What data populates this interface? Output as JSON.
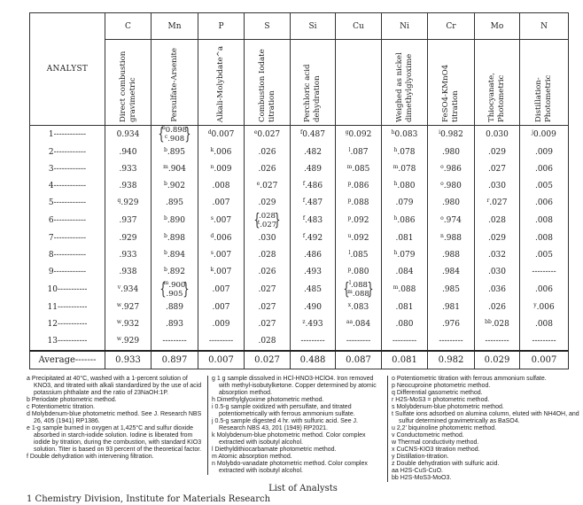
{
  "header": {
    "analyst_label": "ANALYST",
    "columns": [
      {
        "element": "C",
        "method": "Direct combustion gravimetric"
      },
      {
        "element": "Mn",
        "method": "Persulfate-Arsenite"
      },
      {
        "element": "P",
        "method": "Alkali-Molybdate^a"
      },
      {
        "element": "S",
        "method": "Combustion Iodate titration"
      },
      {
        "element": "Si",
        "method": "Perchloric acid dehydration"
      },
      {
        "element": "Cu",
        "method": ""
      },
      {
        "element": "Ni",
        "method": "Weighed as nickel dimethylglyoxime"
      },
      {
        "element": "Cr",
        "method": "FeSO4-KMnO4 titration"
      },
      {
        "element": "Mo",
        "method": "Thiocyanate, Photometric"
      },
      {
        "element": "N",
        "method": "Distillation-Photometric"
      }
    ]
  },
  "rows": [
    {
      "analyst": "1",
      "cells": [
        [
          [
            "",
            "0.934"
          ]
        ],
        [
          [
            "b",
            "0.898"
          ],
          [
            "c",
            ".908"
          ]
        ],
        [
          [
            "d",
            "0.007"
          ]
        ],
        [
          [
            "e",
            "0.027"
          ]
        ],
        [
          [
            "f",
            "0.487"
          ]
        ],
        [
          [
            "g",
            "0.092"
          ]
        ],
        [
          [
            "h",
            "0.083"
          ]
        ],
        [
          [
            "i",
            "0.982"
          ]
        ],
        [
          [
            "",
            "0.030"
          ]
        ],
        [
          [
            "j",
            "0.009"
          ]
        ]
      ]
    },
    {
      "analyst": "2",
      "cells": [
        [
          [
            "",
            ".940"
          ]
        ],
        [
          [
            "b",
            ".895"
          ]
        ],
        [
          [
            "k",
            ".006"
          ]
        ],
        [
          [
            "",
            ".026"
          ]
        ],
        [
          [
            "",
            ".482"
          ]
        ],
        [
          [
            "l",
            ".087"
          ]
        ],
        [
          [
            "h",
            ".078"
          ]
        ],
        [
          [
            "",
            ".980"
          ]
        ],
        [
          [
            "",
            ".029"
          ]
        ],
        [
          [
            "",
            ".009"
          ]
        ]
      ]
    },
    {
      "analyst": "3",
      "cells": [
        [
          [
            "",
            ".933"
          ]
        ],
        [
          [
            "m",
            ".904"
          ]
        ],
        [
          [
            "n",
            ".009"
          ]
        ],
        [
          [
            "",
            ".026"
          ]
        ],
        [
          [
            "",
            ".489"
          ]
        ],
        [
          [
            "m",
            ".085"
          ]
        ],
        [
          [
            "m",
            ".078"
          ]
        ],
        [
          [
            "o",
            ".986"
          ]
        ],
        [
          [
            "",
            ".027"
          ]
        ],
        [
          [
            "",
            ".006"
          ]
        ]
      ]
    },
    {
      "analyst": "4",
      "cells": [
        [
          [
            "",
            ".938"
          ]
        ],
        [
          [
            "b",
            ".902"
          ]
        ],
        [
          [
            "",
            ".008"
          ]
        ],
        [
          [
            "e",
            ".027"
          ]
        ],
        [
          [
            "f",
            ".486"
          ]
        ],
        [
          [
            "p",
            ".086"
          ]
        ],
        [
          [
            "h",
            ".080"
          ]
        ],
        [
          [
            "o",
            ".980"
          ]
        ],
        [
          [
            "",
            ".030"
          ]
        ],
        [
          [
            "",
            ".005"
          ]
        ]
      ]
    },
    {
      "analyst": "5",
      "cells": [
        [
          [
            "q",
            ".929"
          ]
        ],
        [
          [
            "",
            ".895"
          ]
        ],
        [
          [
            "",
            ".007"
          ]
        ],
        [
          [
            "",
            ".029"
          ]
        ],
        [
          [
            "f",
            ".487"
          ]
        ],
        [
          [
            "p",
            ".088"
          ]
        ],
        [
          [
            "",
            ".079"
          ]
        ],
        [
          [
            "",
            ".980"
          ]
        ],
        [
          [
            "r",
            ".027"
          ]
        ],
        [
          [
            "",
            ".006"
          ]
        ]
      ]
    },
    {
      "analyst": "6",
      "cells": [
        [
          [
            "",
            ".937"
          ]
        ],
        [
          [
            "b",
            ".890"
          ]
        ],
        [
          [
            "s",
            ".007"
          ]
        ],
        [
          [
            "",
            ".028"
          ],
          [
            "t",
            ".027"
          ]
        ],
        [
          [
            "f",
            ".483"
          ]
        ],
        [
          [
            "p",
            ".092"
          ]
        ],
        [
          [
            "h",
            ".086"
          ]
        ],
        [
          [
            "o",
            ".974"
          ]
        ],
        [
          [
            "",
            ".028"
          ]
        ],
        [
          [
            "",
            ".008"
          ]
        ]
      ]
    },
    {
      "analyst": "7",
      "cells": [
        [
          [
            "",
            ".929"
          ]
        ],
        [
          [
            "b",
            ".898"
          ]
        ],
        [
          [
            "d",
            ".006"
          ]
        ],
        [
          [
            "",
            ".030"
          ]
        ],
        [
          [
            "f",
            ".492"
          ]
        ],
        [
          [
            "u",
            ".092"
          ]
        ],
        [
          [
            "",
            ".081"
          ]
        ],
        [
          [
            "n",
            ".988"
          ]
        ],
        [
          [
            "",
            ".029"
          ]
        ],
        [
          [
            "",
            ".008"
          ]
        ]
      ]
    },
    {
      "analyst": "8",
      "cells": [
        [
          [
            "",
            ".933"
          ]
        ],
        [
          [
            "b",
            ".894"
          ]
        ],
        [
          [
            "s",
            ".007"
          ]
        ],
        [
          [
            "",
            ".028"
          ]
        ],
        [
          [
            "",
            ".486"
          ]
        ],
        [
          [
            "l",
            ".085"
          ]
        ],
        [
          [
            "h",
            ".079"
          ]
        ],
        [
          [
            "",
            ".988"
          ]
        ],
        [
          [
            "",
            ".032"
          ]
        ],
        [
          [
            "",
            ".005"
          ]
        ]
      ]
    },
    {
      "analyst": "9",
      "cells": [
        [
          [
            "",
            ".938"
          ]
        ],
        [
          [
            "b",
            ".892"
          ]
        ],
        [
          [
            "k",
            ".007"
          ]
        ],
        [
          [
            "",
            ".026"
          ]
        ],
        [
          [
            "",
            ".493"
          ]
        ],
        [
          [
            "p",
            ".080"
          ]
        ],
        [
          [
            "",
            ".084"
          ]
        ],
        [
          [
            "",
            ".984"
          ]
        ],
        [
          [
            "",
            ".030"
          ]
        ],
        [
          [
            "",
            "---------"
          ]
        ]
      ]
    },
    {
      "analyst": "10",
      "cells": [
        [
          [
            "v",
            ".934"
          ]
        ],
        [
          [
            "m",
            ".900"
          ],
          [
            "",
            ".905"
          ]
        ],
        [
          [
            "",
            ".007"
          ]
        ],
        [
          [
            "",
            ".027"
          ]
        ],
        [
          [
            "",
            ".485"
          ]
        ],
        [
          [
            "l",
            ".088"
          ],
          [
            "m",
            ".088"
          ]
        ],
        [
          [
            "m",
            ".088"
          ]
        ],
        [
          [
            "",
            ".985"
          ]
        ],
        [
          [
            "",
            ".036"
          ]
        ],
        [
          [
            "",
            ".006"
          ]
        ]
      ]
    },
    {
      "analyst": "11",
      "cells": [
        [
          [
            "w",
            ".927"
          ]
        ],
        [
          [
            "",
            ".889"
          ]
        ],
        [
          [
            "",
            ".007"
          ]
        ],
        [
          [
            "",
            ".027"
          ]
        ],
        [
          [
            "",
            ".490"
          ]
        ],
        [
          [
            "x",
            ".083"
          ]
        ],
        [
          [
            "",
            ".081"
          ]
        ],
        [
          [
            "",
            ".981"
          ]
        ],
        [
          [
            "",
            ".026"
          ]
        ],
        [
          [
            "y",
            ".006"
          ]
        ]
      ]
    },
    {
      "analyst": "12",
      "cells": [
        [
          [
            "w",
            ".932"
          ]
        ],
        [
          [
            "",
            ".893"
          ]
        ],
        [
          [
            "",
            ".009"
          ]
        ],
        [
          [
            "",
            ".027"
          ]
        ],
        [
          [
            "z",
            ".493"
          ]
        ],
        [
          [
            "aa",
            ".084"
          ]
        ],
        [
          [
            "",
            ".080"
          ]
        ],
        [
          [
            "",
            ".976"
          ]
        ],
        [
          [
            "bb",
            ".028"
          ]
        ],
        [
          [
            "",
            ".008"
          ]
        ]
      ]
    },
    {
      "analyst": "13",
      "cells": [
        [
          [
            "w",
            ".929"
          ]
        ],
        [
          [
            "",
            "---------"
          ]
        ],
        [
          [
            "",
            "---------"
          ]
        ],
        [
          [
            "",
            ".028"
          ]
        ],
        [
          [
            "",
            "---------"
          ]
        ],
        [
          [
            "",
            "---------"
          ]
        ],
        [
          [
            "",
            "---------"
          ]
        ],
        [
          [
            "",
            "---------"
          ]
        ],
        [
          [
            "",
            "---------"
          ]
        ],
        [
          [
            "",
            "---------"
          ]
        ]
      ]
    }
  ],
  "average": {
    "label": "Average",
    "values": [
      "0.933",
      "0.897",
      "0.007",
      "0.027",
      "0.488",
      "0.087",
      "0.081",
      "0.982",
      "0.029",
      "0.007"
    ]
  },
  "footnotes": [
    [
      "a Precipitated at 40°C, washed with a 1-percent solution of KNO3, and titrated with alkali standardized by the use of acid potassium phthalate and the ratio of 23NaOH:1P.",
      "b Periodate photometric method.",
      "c Potentiometric titration.",
      "d Molybdenum-blue photometric method. See J. Research NBS 26, 405 (1941) RP1386.",
      "e 1-g sample burned in oxygen at 1,425°C and sulfur dioxide absorbed in starch-iodide solution. Iodine is liberated from iodide by titration, during the combustion, with standard KIO3 solution. Titer is based on 93 percent of the theoretical factor.",
      "f Double dehydration with intervening filtration."
    ],
    [
      "g 1 g sample dissolved in HCl-HNO3-HClO4. Iron removed with methyl-isobutylketone. Copper determined by atomic absorption method.",
      "h Dimethylglyoxime photometric method.",
      "i 0.5-g sample oxidized with persulfate, and titrated potentiometrically with ferrous ammonium sulfate.",
      "j 0.5-g sample digested 4 hr. with sulfuric acid. See J. Research NBS 43, 201 (1949) RP2021.",
      "k Molybdenum-blue photometric method. Color complex extracted with isobutyl alcohol.",
      "l Diethyldithiocarbamate photometric method.",
      "m Atomic absorption method.",
      "n Molybdo-vanadate photometric method. Color complex extracted with isobutyl alcohol."
    ],
    [
      "o Potentiometric titration with ferrous ammonium sulfate.",
      "p Neocuproine photometric method.",
      "q Differential gasometric method.",
      "r H2S-MoS3 = photometric method.",
      "s Molybdenum-blue photometric method.",
      "t Sulfate ions adsorbed on alumina column, eluted with NH4OH, and sulfur determined gravimetrically as BaSO4.",
      "u 2,2' biquinoline photometric method.",
      "v Conductometric method.",
      "w Thermal conductivity method.",
      "x CuCNS-KIO3 titration method.",
      "y Distillation-titration.",
      "z Double dehydration with sulfuric acid.",
      "aa H2S-CuS-CuO.",
      "bb H2S-MoS3-MoO3."
    ]
  ],
  "list_title": "List of Analysts",
  "bottom_line": "1 Chemistry Division, Institute for Materials Research"
}
